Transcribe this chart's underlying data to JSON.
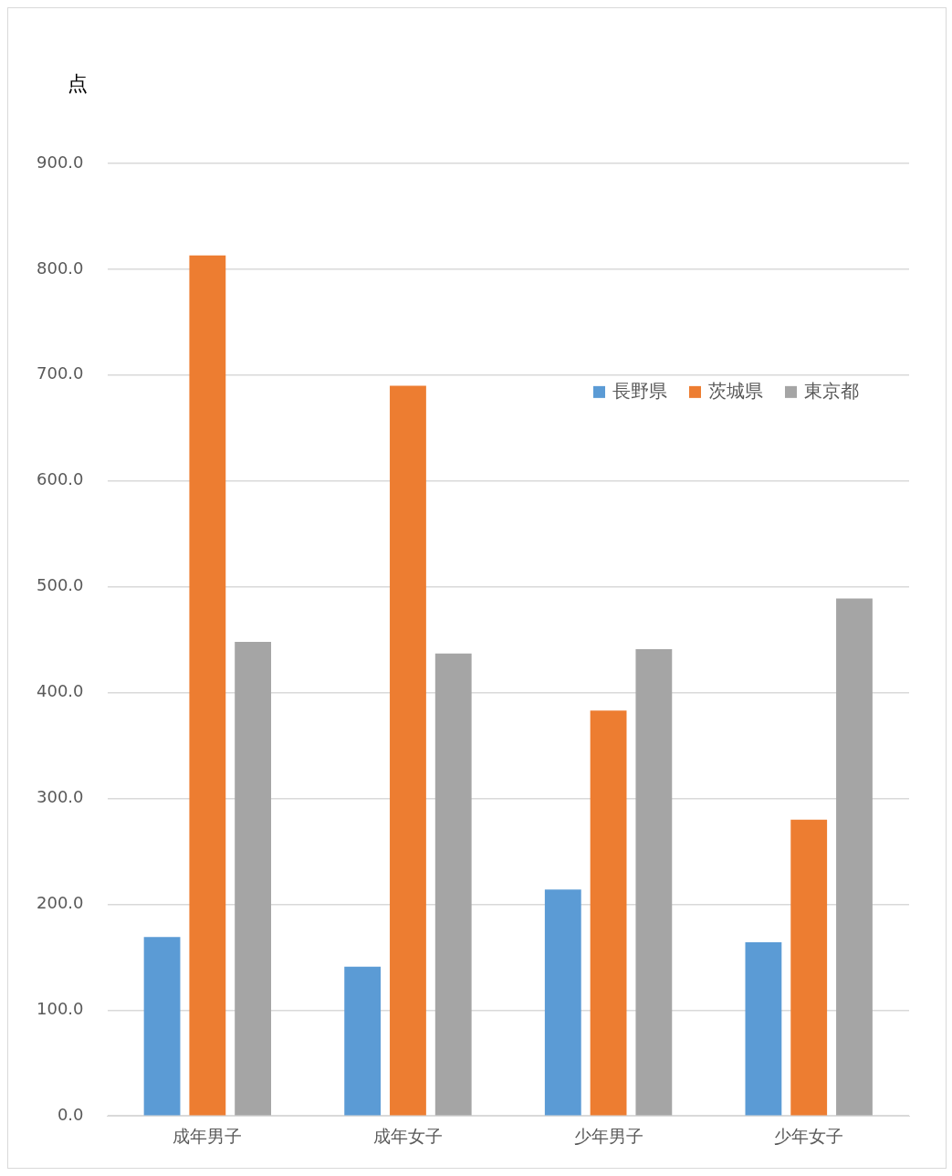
{
  "chart_data": {
    "type": "bar",
    "ylabel": "点",
    "categories": [
      "成年男子",
      "成年女子",
      "少年男子",
      "少年女子"
    ],
    "series": [
      {
        "name": "長野県",
        "color": "#5b9bd5",
        "values": [
          169,
          141,
          214,
          164
        ]
      },
      {
        "name": "茨城県",
        "color": "#ed7d31",
        "values": [
          813,
          690,
          383,
          280
        ]
      },
      {
        "name": "東京都",
        "color": "#a5a5a5",
        "values": [
          448,
          437,
          441,
          489
        ]
      }
    ],
    "ylim": [
      0,
      900
    ],
    "yticks": [
      {
        "value": 0,
        "label": "0.0"
      },
      {
        "value": 100,
        "label": "100.0"
      },
      {
        "value": 200,
        "label": "200.0"
      },
      {
        "value": 300,
        "label": "300.0"
      },
      {
        "value": 400,
        "label": "400.0"
      },
      {
        "value": 500,
        "label": "500.0"
      },
      {
        "value": 600,
        "label": "600.0"
      },
      {
        "value": 700,
        "label": "700.0"
      },
      {
        "value": 800,
        "label": "800.0"
      },
      {
        "value": 900,
        "label": "900.0"
      }
    ],
    "grid": "y",
    "legend": "top right"
  }
}
